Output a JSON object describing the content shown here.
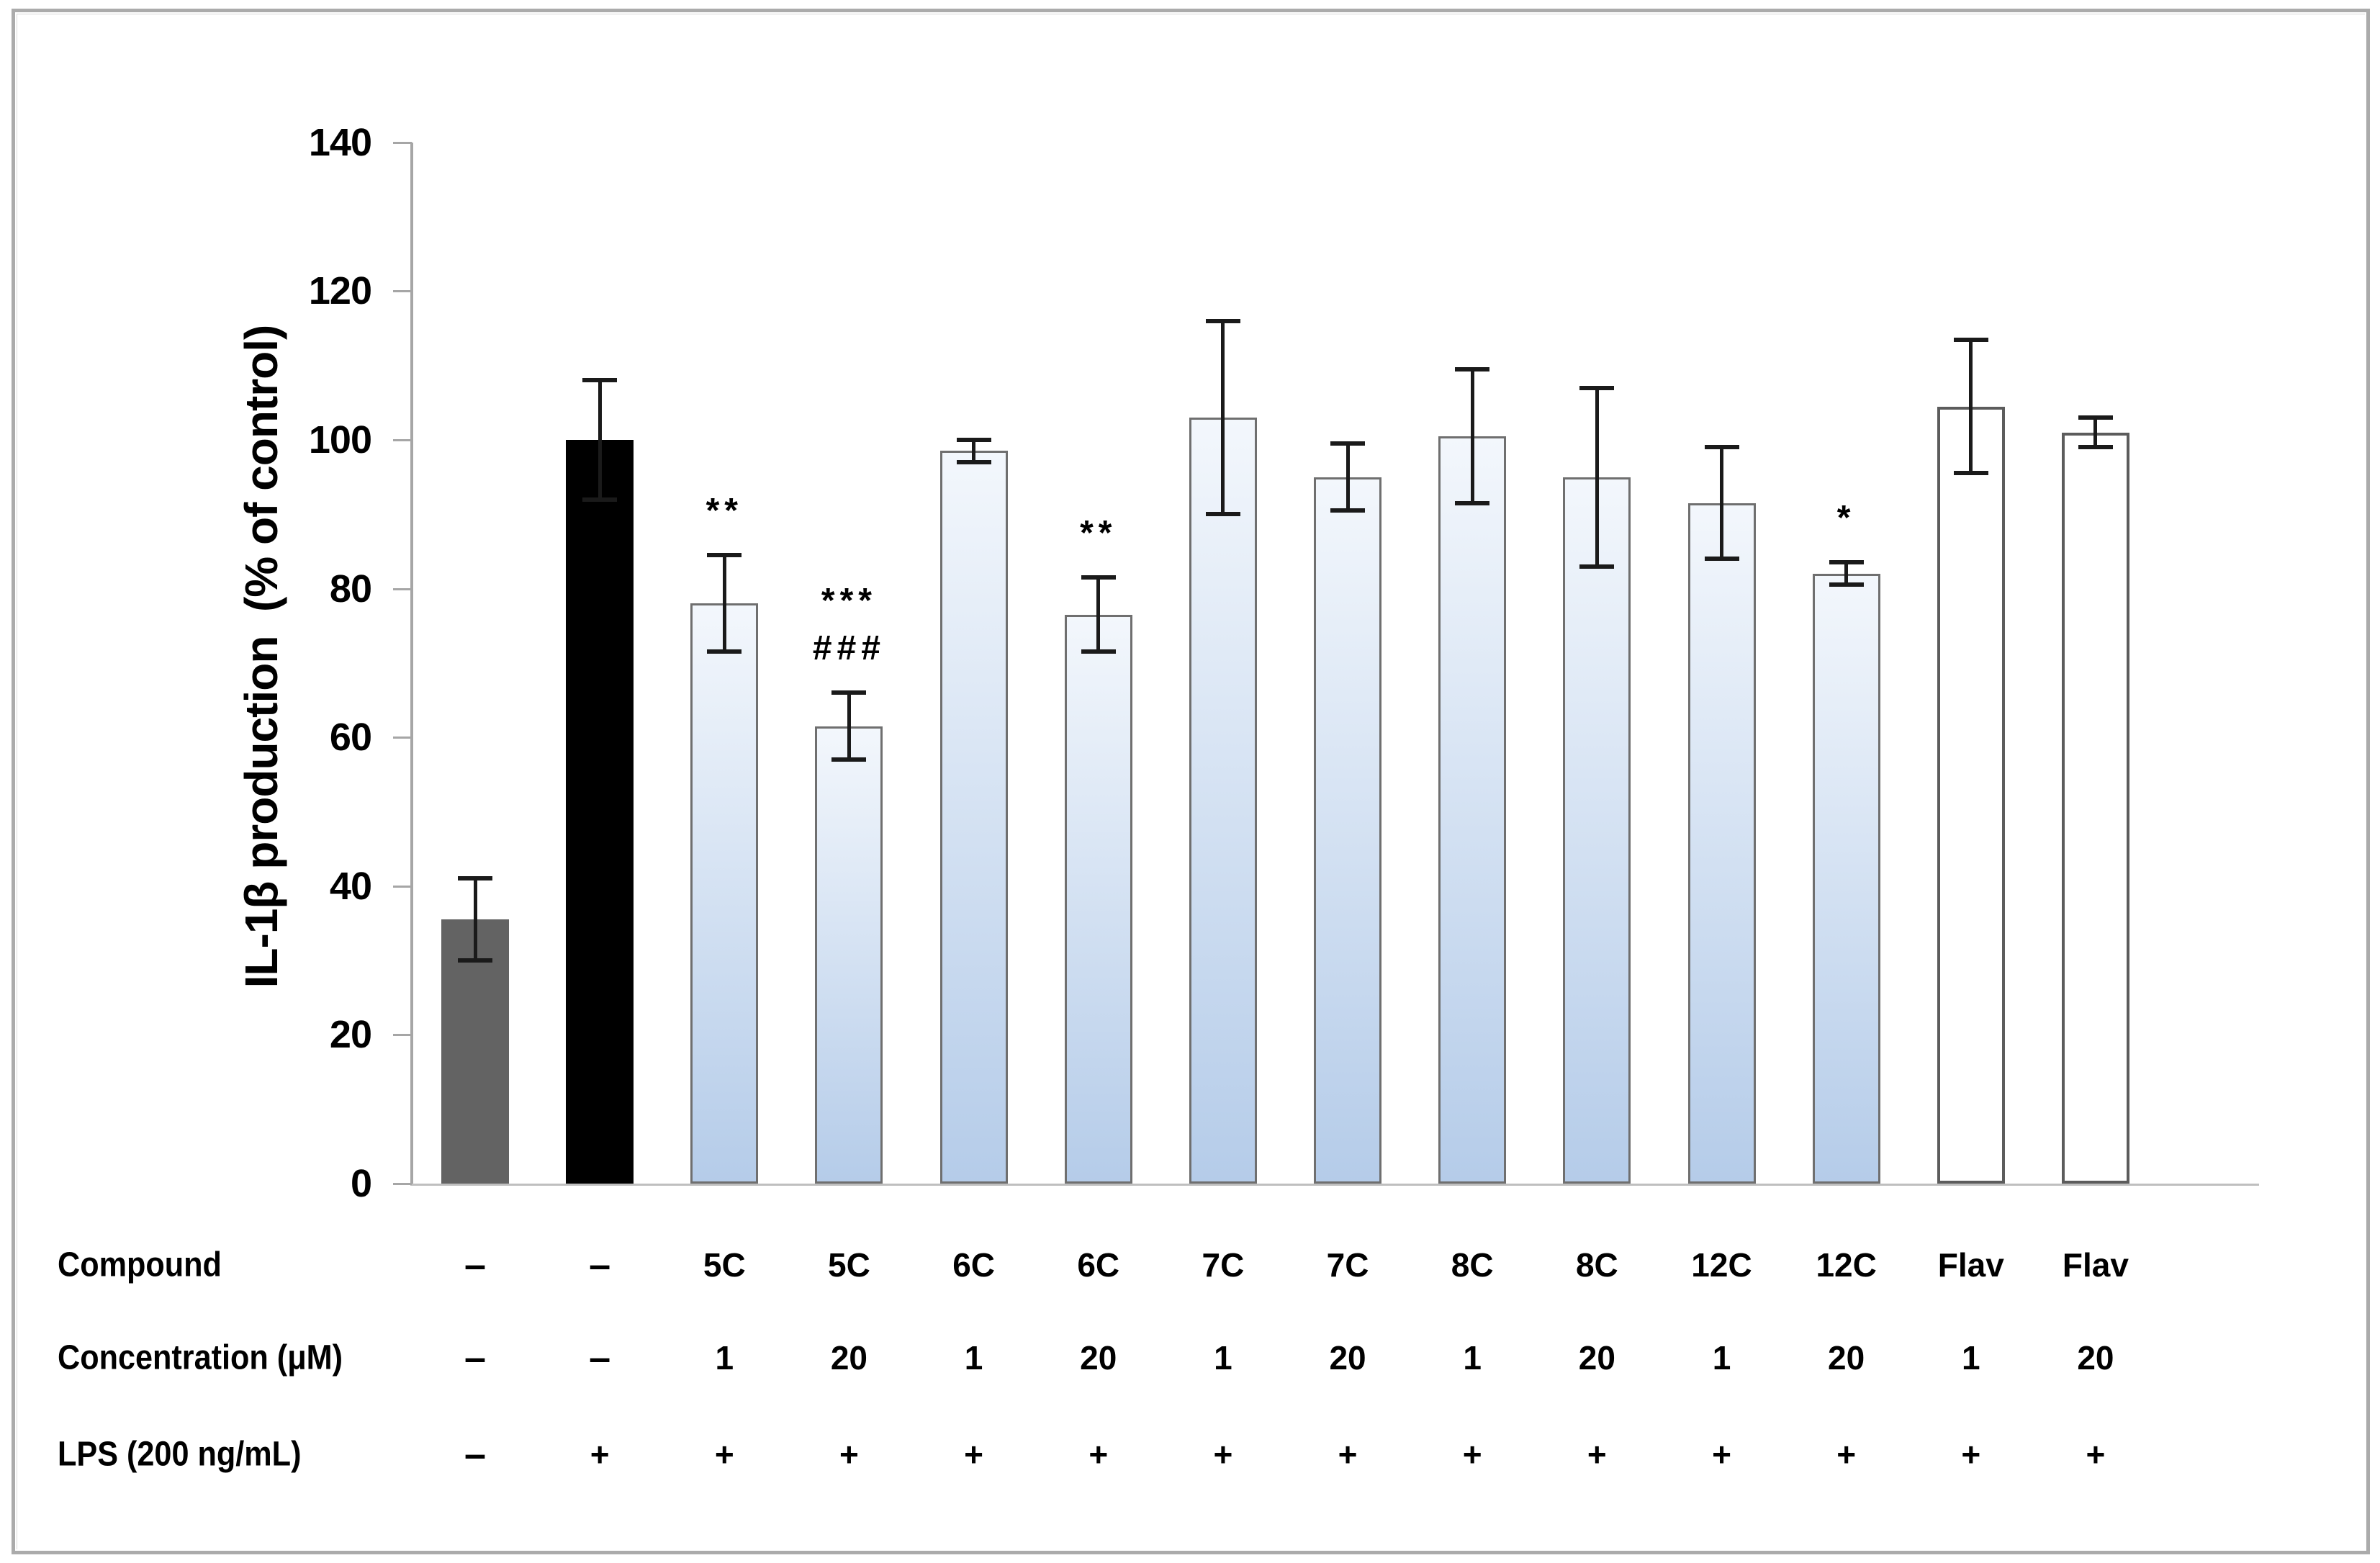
{
  "figure": {
    "background": "#ffffff",
    "border_color": "#ababab"
  },
  "chart_data": {
    "type": "bar",
    "title": "",
    "ylabel": "IL-1β production  (% of control)",
    "xlabel": "",
    "ylim": [
      0,
      140
    ],
    "yticks": [
      0,
      20,
      40,
      60,
      80,
      100,
      120,
      140
    ],
    "grid": "off",
    "legend": "none",
    "annotation_rows": [
      {
        "key": "compound",
        "label": "Compound"
      },
      {
        "key": "concentration",
        "label": "Concentration (μM)"
      },
      {
        "key": "lps",
        "label": "LPS (200 ng/mL)"
      }
    ],
    "bars": [
      {
        "compound": "–",
        "concentration": "–",
        "lps": "–",
        "value": 35.5,
        "error": 5.5,
        "style": "gray",
        "sig": []
      },
      {
        "compound": "–",
        "concentration": "–",
        "lps": "+",
        "value": 100,
        "error": 8,
        "style": "black",
        "sig": []
      },
      {
        "compound": "5C",
        "concentration": "1",
        "lps": "+",
        "value": 78,
        "error": 6.5,
        "style": "blue",
        "sig": [
          "**"
        ]
      },
      {
        "compound": "5C",
        "concentration": "20",
        "lps": "+",
        "value": 61.5,
        "error": 4.5,
        "style": "blue",
        "sig": [
          "***",
          "###"
        ]
      },
      {
        "compound": "6C",
        "concentration": "1",
        "lps": "+",
        "value": 98.5,
        "error": 1.5,
        "style": "blue",
        "sig": []
      },
      {
        "compound": "6C",
        "concentration": "20",
        "lps": "+",
        "value": 76.5,
        "error": 5,
        "style": "blue",
        "sig": [
          "**"
        ]
      },
      {
        "compound": "7C",
        "concentration": "1",
        "lps": "+",
        "value": 103,
        "error": 13,
        "style": "blue",
        "sig": []
      },
      {
        "compound": "7C",
        "concentration": "20",
        "lps": "+",
        "value": 95,
        "error": 4.5,
        "style": "blue",
        "sig": []
      },
      {
        "compound": "8C",
        "concentration": "1",
        "lps": "+",
        "value": 100.5,
        "error": 9,
        "style": "blue",
        "sig": []
      },
      {
        "compound": "8C",
        "concentration": "20",
        "lps": "+",
        "value": 95,
        "error": 12,
        "style": "blue",
        "sig": []
      },
      {
        "compound": "12C",
        "concentration": "1",
        "lps": "+",
        "value": 91.5,
        "error": 7.5,
        "style": "blue",
        "sig": []
      },
      {
        "compound": "12C",
        "concentration": "20",
        "lps": "+",
        "value": 82,
        "error": 1.5,
        "style": "blue",
        "sig": [
          "*"
        ]
      },
      {
        "compound": "Flav",
        "concentration": "1",
        "lps": "+",
        "value": 104.5,
        "error": 9,
        "style": "white",
        "sig": []
      },
      {
        "compound": "Flav",
        "concentration": "20",
        "lps": "+",
        "value": 101,
        "error": 2,
        "style": "white",
        "sig": []
      }
    ],
    "colors": {
      "gray_bar": "#636363",
      "black_bar": "#000000",
      "blue_bar_top": "#f3f7fc",
      "blue_bar_bottom": "#b5cce9",
      "white_bar": "#ffffff",
      "bar_border": "#6f6f6f",
      "error_bar": "#1a1a1a",
      "y_axis": "#a6a6a6",
      "x_axis": "#bfbfbf",
      "text": "#000000"
    }
  }
}
